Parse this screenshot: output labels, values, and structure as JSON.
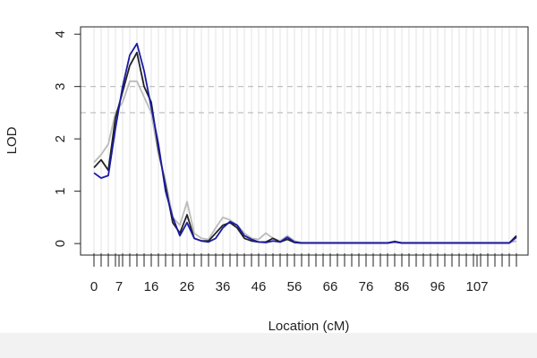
{
  "chart_data": {
    "type": "line",
    "xlabel": "Location (cM)",
    "ylabel": "LOD",
    "x": [
      0,
      2,
      4,
      6,
      8,
      10,
      12,
      14,
      16,
      18,
      20,
      22,
      24,
      26,
      28,
      30,
      32,
      34,
      36,
      38,
      40,
      42,
      44,
      46,
      48,
      50,
      52,
      54,
      56,
      58,
      60,
      62,
      64,
      66,
      68,
      70,
      72,
      74,
      76,
      78,
      80,
      82,
      84,
      86,
      88,
      90,
      92,
      94,
      96,
      98,
      100,
      102,
      104,
      106,
      108,
      110,
      112,
      114,
      116,
      118
    ],
    "series": [
      {
        "color": "#bbbbbb",
        "values": [
          1.55,
          1.7,
          1.9,
          2.5,
          2.7,
          3.1,
          3.1,
          2.8,
          2.5,
          1.7,
          1.2,
          0.5,
          0.35,
          0.8,
          0.2,
          0.1,
          0.08,
          0.3,
          0.5,
          0.45,
          0.35,
          0.2,
          0.1,
          0.08,
          0.2,
          0.1,
          0.05,
          0.15,
          0.05,
          0.02,
          0.02,
          0.02,
          0.02,
          0.02,
          0.02,
          0.02,
          0.02,
          0.02,
          0.02,
          0.02,
          0.02,
          0.02,
          0.03,
          0.02,
          0.02,
          0.02,
          0.02,
          0.02,
          0.02,
          0.02,
          0.02,
          0.02,
          0.02,
          0.02,
          0.02,
          0.02,
          0.02,
          0.02,
          0.02,
          0.05
        ]
      },
      {
        "color": "#222222",
        "values": [
          1.45,
          1.6,
          1.4,
          2.4,
          2.9,
          3.4,
          3.65,
          3.0,
          2.7,
          1.8,
          1.1,
          0.4,
          0.2,
          0.55,
          0.1,
          0.05,
          0.05,
          0.2,
          0.35,
          0.4,
          0.3,
          0.1,
          0.05,
          0.03,
          0.03,
          0.1,
          0.03,
          0.08,
          0.02,
          0.01,
          0.01,
          0.01,
          0.01,
          0.01,
          0.01,
          0.01,
          0.01,
          0.01,
          0.01,
          0.01,
          0.01,
          0.01,
          0.04,
          0.01,
          0.01,
          0.01,
          0.01,
          0.01,
          0.01,
          0.01,
          0.01,
          0.01,
          0.01,
          0.01,
          0.01,
          0.01,
          0.01,
          0.01,
          0.01,
          0.15
        ]
      },
      {
        "color": "#1a1aa6",
        "values": [
          1.35,
          1.25,
          1.3,
          2.2,
          3.0,
          3.6,
          3.82,
          3.3,
          2.6,
          1.9,
          1.0,
          0.5,
          0.15,
          0.4,
          0.1,
          0.05,
          0.03,
          0.1,
          0.3,
          0.42,
          0.35,
          0.15,
          0.08,
          0.03,
          0.02,
          0.05,
          0.03,
          0.12,
          0.03,
          0.01,
          0.01,
          0.01,
          0.01,
          0.01,
          0.01,
          0.01,
          0.01,
          0.01,
          0.01,
          0.01,
          0.01,
          0.01,
          0.03,
          0.01,
          0.01,
          0.01,
          0.01,
          0.01,
          0.01,
          0.01,
          0.01,
          0.01,
          0.01,
          0.01,
          0.01,
          0.01,
          0.01,
          0.01,
          0.01,
          0.12
        ]
      }
    ],
    "thresholds": [
      3,
      2.5
    ],
    "xlim": [
      -3.75,
      121.25
    ],
    "xticks": [
      0,
      7,
      16,
      26,
      36,
      46,
      56,
      66,
      76,
      86,
      96,
      107
    ],
    "ylim": [
      -0.22,
      4.14
    ],
    "yticks": [
      0,
      1,
      2,
      3,
      4
    ]
  }
}
